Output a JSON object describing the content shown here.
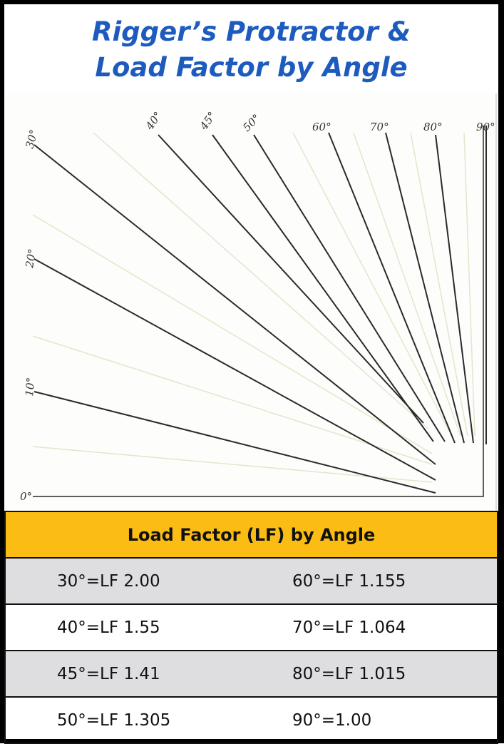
{
  "header": {
    "title_line1": "Rigger’s Protractor &",
    "title_line2": "Load Factor by Angle"
  },
  "protractor": {
    "labels": [
      "30°",
      "20°",
      "10°",
      "0°",
      "40°",
      "45°",
      "50°",
      "60°",
      "70°",
      "80°",
      "90°"
    ]
  },
  "table": {
    "title": "Load Factor (LF) by Angle",
    "rows": [
      [
        "30°=LF 2.00",
        "60°=LF 1.155"
      ],
      [
        "40°=LF 1.55",
        "70°=LF 1.064"
      ],
      [
        "45°=LF 1.41",
        "80°=LF 1.015"
      ],
      [
        "50°=LF 1.305",
        "90°=1.00"
      ]
    ]
  }
}
